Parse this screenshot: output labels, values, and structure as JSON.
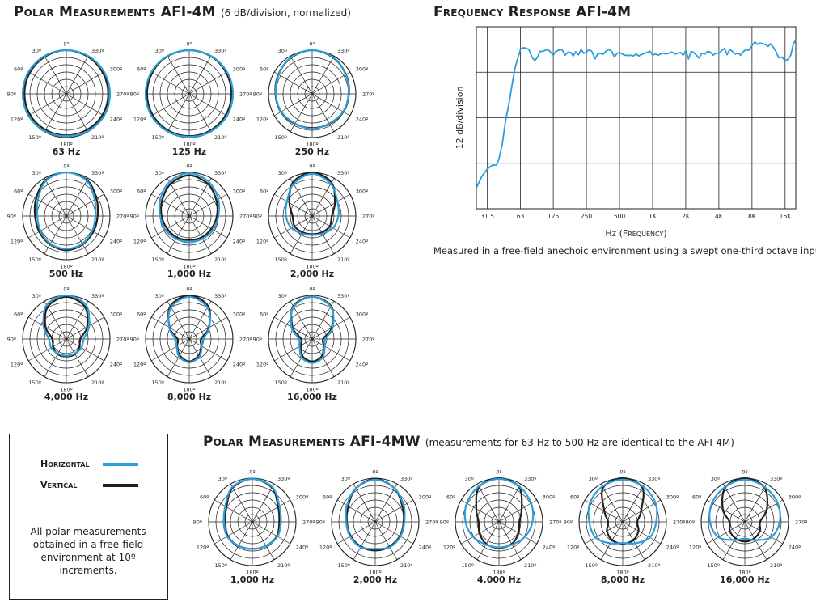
{
  "polar_title_main": "Polar Measurements AFI-4M",
  "polar_title_sub": "(6 dB/division, normalized)",
  "mw_title_main": "Polar Measurements AFI-4MW",
  "mw_title_sub": "(measurements for 63 Hz to 500 Hz are identical to the AFI-4M)",
  "freq_title": "Frequency Response AFI-4M",
  "freq_caption": "Measured in a free-field anechoic environment using a swept one-third octave input.",
  "legend": {
    "horizontal_label": "Horizontal",
    "vertical_label": "Vertical",
    "horizontal_color": "#2a9fd8",
    "vertical_color": "#231f20",
    "note": "All polar measurements obtained in a free-field environment at 10º increments."
  },
  "angle_labels": [
    "0º",
    "30º",
    "60º",
    "90º",
    "120º",
    "150º",
    "180º",
    "210º",
    "240º",
    "270º",
    "300º",
    "330º"
  ],
  "chart_data": [
    {
      "type": "line",
      "title": "Frequency Response AFI-4M",
      "xlabel": "Hz (Frequency)",
      "ylabel": "12 dB/division",
      "x_scale": "log",
      "xlim": [
        25,
        20000
      ],
      "x_ticks": [
        "31.5",
        "63",
        "125",
        "250",
        "500",
        "1K",
        "2K",
        "4K",
        "8K",
        "16K"
      ],
      "x_tick_values": [
        31.5,
        63,
        125,
        250,
        500,
        1000,
        2000,
        4000,
        8000,
        16000
      ],
      "y_divisions": 4,
      "grid": true,
      "series": [
        {
          "color": "#2a9fd8",
          "x": [
            25,
            28,
            31.5,
            35,
            38,
            40,
            43,
            46,
            50,
            53,
            56,
            60,
            63,
            67,
            71,
            75,
            80,
            85,
            90,
            95,
            100,
            106,
            112,
            118,
            125,
            132,
            140,
            150,
            160,
            170,
            180,
            190,
            200,
            212,
            224,
            236,
            250,
            265,
            280,
            300,
            315,
            335,
            355,
            375,
            400,
            425,
            450,
            475,
            500,
            530,
            560,
            600,
            630,
            670,
            710,
            750,
            800,
            850,
            900,
            950,
            1000,
            1060,
            1120,
            1180,
            1250,
            1320,
            1400,
            1500,
            1600,
            1700,
            1800,
            1900,
            2000,
            2120,
            2240,
            2360,
            2500,
            2650,
            2800,
            3000,
            3150,
            3350,
            3550,
            3750,
            4000,
            4250,
            4500,
            4750,
            5000,
            5300,
            5600,
            6000,
            6300,
            6700,
            7100,
            7500,
            8000,
            8500,
            9000,
            9500,
            10000,
            10600,
            11200,
            11800,
            12500,
            13200,
            14000,
            15000,
            16000,
            17000,
            18000,
            19000,
            20000
          ],
          "values": [
            -18.5,
            -15.5,
            -13.5,
            -12.5,
            -12.5,
            -11,
            -7,
            -1,
            4.5,
            9,
            13,
            16,
            18,
            18.5,
            18.3,
            18,
            16,
            15,
            16,
            17.5,
            17.5,
            17.8,
            18,
            17.3,
            16.5,
            17.5,
            17.8,
            18,
            16.5,
            17.3,
            17.2,
            16.3,
            17.4,
            16.6,
            18,
            17,
            17.3,
            18,
            17.5,
            15.5,
            16.7,
            17,
            16.7,
            17.5,
            18,
            17.5,
            16,
            17,
            17.2,
            16.8,
            16.5,
            16.4,
            16.5,
            16.3,
            16.8,
            16.3,
            16.7,
            17,
            17.3,
            17.5,
            16.5,
            16.8,
            16.5,
            16.8,
            17,
            16.8,
            17,
            17.3,
            16.8,
            17,
            17.2,
            16.5,
            17.7,
            15.5,
            17.5,
            17.2,
            16.5,
            15.7,
            17,
            16.8,
            17.5,
            17.3,
            16.5,
            17,
            17,
            17.7,
            18.3,
            16.6,
            18,
            17.5,
            16.8,
            17,
            16.5,
            17.5,
            18,
            17.8,
            19,
            20,
            19.3,
            19.7,
            19.5,
            19.3,
            18.8,
            19.5,
            18.6,
            17.5,
            15.8,
            16,
            15,
            15.4,
            16.5,
            19.5,
            20.5
          ]
        }
      ]
    },
    {
      "type": "polar",
      "title": "Polar Measurements AFI-4M",
      "unit": "6 dB/division, normalized",
      "rings": 6,
      "angle_step_deg": 30,
      "series_names": [
        "Horizontal",
        "Vertical"
      ],
      "plots": [
        {
          "label": "63 Hz",
          "horizontal": [
            6,
            6,
            6,
            6,
            6,
            5.9,
            5.8,
            5.9,
            6,
            6,
            6,
            6
          ],
          "vertical": [
            6,
            5.9,
            5.8,
            5.75,
            5.75,
            5.7,
            5.7,
            5.7,
            5.75,
            5.75,
            5.8,
            5.9
          ]
        },
        {
          "label": "125 Hz",
          "horizontal": [
            6,
            6,
            6,
            6,
            6,
            5.95,
            5.9,
            5.95,
            6,
            6,
            6,
            6
          ],
          "vertical": [
            6,
            5.95,
            5.85,
            5.8,
            5.8,
            5.8,
            5.8,
            5.8,
            5.8,
            5.8,
            5.85,
            5.95
          ]
        },
        {
          "label": "250 Hz",
          "horizontal": [
            6,
            5.8,
            5.3,
            5,
            4.9,
            4.7,
            4.8,
            4.7,
            4.9,
            5,
            5.3,
            5.8
          ],
          "vertical": [
            6,
            5.75,
            5.35,
            5.05,
            4.95,
            4.75,
            4.7,
            4.75,
            4.95,
            5.05,
            5.35,
            5.75
          ]
        },
        {
          "label": "500 Hz",
          "horizontal": [
            6,
            5.6,
            4.5,
            4,
            4.1,
            4.4,
            4.5,
            4.4,
            4.1,
            4,
            4.5,
            5.6
          ],
          "vertical": [
            6,
            5.7,
            4.8,
            4.3,
            4.3,
            4.5,
            4.7,
            4.5,
            4.3,
            4.3,
            4.8,
            5.7
          ]
        },
        {
          "label": "1,000 Hz",
          "horizontal": [
            5.9,
            5.4,
            4.6,
            4,
            3.8,
            3.6,
            3.6,
            3.6,
            3.8,
            4,
            4.6,
            5.4
          ],
          "vertical": [
            5.6,
            5.1,
            4.3,
            3.8,
            3.5,
            3.4,
            3.3,
            3.4,
            3.5,
            3.8,
            4.3,
            5.1
          ]
        },
        {
          "label": "2,000 Hz",
          "horizontal": [
            5.8,
            5.1,
            4,
            3.6,
            3.3,
            2.8,
            2.6,
            2.8,
            3.3,
            3.6,
            4,
            5.1
          ],
          "vertical": [
            6,
            5.3,
            3.6,
            2.7,
            2.8,
            2.6,
            2.5,
            2.6,
            2.8,
            2.7,
            3.6,
            5.3
          ]
        },
        {
          "label": "4,000 Hz",
          "horizontal": [
            6,
            5.4,
            3.6,
            2.4,
            2.4,
            2.3,
            2.3,
            2.3,
            2.4,
            2.4,
            3.6,
            5.4
          ],
          "vertical": [
            5.8,
            5.1,
            3.3,
            1.9,
            2.1,
            2.4,
            2.4,
            2.4,
            2.1,
            1.9,
            3.3,
            5.1
          ]
        },
        {
          "label": "8,000 Hz",
          "horizontal": [
            5.8,
            5,
            3.2,
            1.9,
            2,
            2.8,
            3.2,
            2.8,
            2,
            1.9,
            3.2,
            5
          ],
          "vertical": [
            6,
            5.2,
            3.1,
            1.6,
            1.9,
            2.6,
            3.1,
            2.6,
            1.9,
            1.6,
            3.1,
            5.2
          ]
        },
        {
          "label": "16,000 Hz",
          "horizontal": [
            5.8,
            5.1,
            3.3,
            1.8,
            2,
            2.9,
            3.3,
            2.9,
            2,
            1.8,
            3.3,
            5.1
          ],
          "vertical": [
            5.8,
            5.2,
            3.1,
            1.5,
            1.8,
            2.7,
            3.1,
            2.7,
            1.8,
            1.5,
            3.1,
            5.2
          ]
        }
      ]
    },
    {
      "type": "polar",
      "title": "Polar Measurements AFI-4MW",
      "unit": "6 dB/division, normalized",
      "rings": 6,
      "angle_step_deg": 30,
      "series_names": [
        "Horizontal",
        "Vertical"
      ],
      "plots": [
        {
          "label": "1,000 Hz",
          "horizontal": [
            5.9,
            5.5,
            4.3,
            3.9,
            4,
            3.8,
            3.7,
            3.8,
            4,
            3.9,
            4.3,
            5.5
          ],
          "vertical": [
            5.9,
            5.4,
            4.1,
            3.7,
            3.9,
            3.8,
            3.7,
            3.8,
            3.9,
            3.7,
            4.1,
            5.4
          ]
        },
        {
          "label": "2,000 Hz",
          "horizontal": [
            5.8,
            5.3,
            4.5,
            4,
            4,
            4,
            3.7,
            4,
            4,
            4,
            4.5,
            5.3
          ],
          "vertical": [
            5.9,
            5.3,
            4.3,
            3.9,
            3.9,
            3.9,
            3.9,
            3.9,
            3.9,
            3.9,
            4.3,
            5.3
          ]
        },
        {
          "label": "4,000 Hz",
          "horizontal": [
            5.9,
            5.6,
            5.1,
            4.6,
            4.1,
            3.6,
            3.5,
            3.6,
            4.1,
            4.6,
            5.1,
            5.6
          ],
          "vertical": [
            6,
            5.5,
            3.6,
            2.8,
            3.1,
            3.5,
            3.6,
            3.5,
            3.1,
            2.8,
            3.6,
            5.5
          ]
        },
        {
          "label": "8,000 Hz",
          "horizontal": [
            5.8,
            5.6,
            5.2,
            4.6,
            4.3,
            3.4,
            2.9,
            3.4,
            4.3,
            4.6,
            5.2,
            5.6
          ],
          "vertical": [
            6,
            5.4,
            2.9,
            2,
            2.5,
            2.9,
            3,
            2.9,
            2.5,
            2,
            2.9,
            5.4
          ]
        },
        {
          "label": "16,000 Hz",
          "horizontal": [
            5.8,
            5.5,
            5.2,
            4.8,
            4.2,
            2.9,
            2.3,
            2.9,
            4.2,
            4.8,
            5.2,
            5.5
          ],
          "vertical": [
            6,
            5.4,
            3.5,
            2.1,
            2.4,
            2.6,
            2.7,
            2.6,
            2.4,
            2.1,
            3.5,
            5.4
          ]
        }
      ]
    }
  ]
}
